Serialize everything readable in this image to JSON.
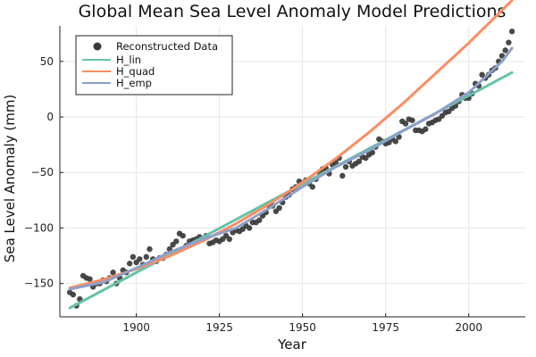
{
  "chart_data": {
    "type": "scatter",
    "title": "Global Mean Sea Level Anomaly Model Predictions",
    "xlabel": "Year",
    "ylabel": "Sea Level Anomaly (mm)",
    "xlim": [
      1877,
      2017
    ],
    "ylim": [
      -180,
      82
    ],
    "xticks": [
      1900,
      1925,
      1950,
      1975,
      2000
    ],
    "yticks": [
      -150,
      -100,
      -50,
      0,
      50
    ],
    "grid": true,
    "legend_position": "top-left",
    "series": [
      {
        "name": "Reconstructed Data",
        "kind": "scatter",
        "color": "#3a3a3a",
        "x": [
          1880,
          1881,
          1882,
          1883,
          1884,
          1885,
          1886,
          1887,
          1888,
          1889,
          1890,
          1891,
          1892,
          1893,
          1894,
          1895,
          1896,
          1897,
          1898,
          1899,
          1900,
          1901,
          1902,
          1903,
          1904,
          1905,
          1906,
          1907,
          1908,
          1909,
          1910,
          1911,
          1912,
          1913,
          1914,
          1915,
          1916,
          1917,
          1918,
          1919,
          1920,
          1921,
          1922,
          1923,
          1924,
          1925,
          1926,
          1927,
          1928,
          1929,
          1930,
          1931,
          1932,
          1933,
          1934,
          1935,
          1936,
          1937,
          1938,
          1939,
          1940,
          1941,
          1942,
          1943,
          1944,
          1945,
          1946,
          1947,
          1948,
          1949,
          1950,
          1951,
          1952,
          1953,
          1954,
          1955,
          1956,
          1957,
          1958,
          1959,
          1960,
          1961,
          1962,
          1963,
          1964,
          1965,
          1966,
          1967,
          1968,
          1969,
          1970,
          1971,
          1972,
          1973,
          1974,
          1975,
          1976,
          1977,
          1978,
          1979,
          1980,
          1981,
          1982,
          1983,
          1984,
          1985,
          1986,
          1987,
          1988,
          1989,
          1990,
          1991,
          1992,
          1993,
          1994,
          1995,
          1996,
          1997,
          1998,
          1999,
          2000,
          2001,
          2002,
          2003,
          2004,
          2005,
          2006,
          2007,
          2008,
          2009,
          2010,
          2011,
          2012,
          2013
        ],
        "y": [
          -158,
          -160,
          -170,
          -164,
          -143,
          -145,
          -146,
          -153,
          -150,
          -150,
          -147,
          -148,
          -145,
          -140,
          -150,
          -145,
          -138,
          -140,
          -132,
          -126,
          -131,
          -128,
          -133,
          -126,
          -119,
          -128,
          -130,
          -127,
          -127,
          -124,
          -119,
          -115,
          -112,
          -105,
          -107,
          -116,
          -112,
          -111,
          -110,
          -108,
          -110,
          -107,
          -114,
          -113,
          -111,
          -112,
          -110,
          -107,
          -110,
          -104,
          -102,
          -103,
          -101,
          -98,
          -100,
          -95,
          -95,
          -93,
          -89,
          -86,
          -80,
          -80,
          -85,
          -82,
          -77,
          -72,
          -70,
          -65,
          -63,
          -58,
          -60,
          -57,
          -60,
          -63,
          -56,
          -50,
          -47,
          -46,
          -51,
          -43,
          -41,
          -37,
          -53,
          -45,
          -40,
          -44,
          -42,
          -40,
          -36,
          -37,
          -34,
          -32,
          -27,
          -20,
          -22,
          -24,
          -23,
          -20,
          -22,
          -18,
          -4,
          -6,
          -2,
          -3,
          -12,
          -12,
          -13,
          -11,
          -6,
          -5,
          -3,
          -2,
          1,
          4,
          5,
          8,
          10,
          14,
          20,
          17,
          17,
          21,
          30,
          28,
          38,
          35,
          38,
          42,
          44,
          50,
          55,
          60,
          67,
          77
        ]
      },
      {
        "name": "H_lin",
        "kind": "line",
        "color": "#66c2a5",
        "x": [
          1880,
          2013
        ],
        "y": [
          -172,
          40
        ]
      },
      {
        "name": "H_quad",
        "kind": "line",
        "color": "#fc8d62",
        "x": [
          1880,
          1890,
          1900,
          1910,
          1920,
          1930,
          1940,
          1950,
          1960,
          1970,
          1980,
          1990,
          2000,
          2010,
          2013
        ],
        "y": [
          -154,
          -146.5,
          -136.9,
          -125.3,
          -111.7,
          -96.1,
          -78.5,
          -59.0,
          -37.5,
          -13.9,
          11.6,
          39.1,
          66.6,
          96.1,
          105
        ]
      },
      {
        "name": "H_emp",
        "kind": "line",
        "color": "#8da0cb",
        "x": [
          1880,
          1890,
          1900,
          1910,
          1920,
          1930,
          1940,
          1950,
          1960,
          1970,
          1980,
          1990,
          2000,
          2010,
          2013
        ],
        "y": [
          -155,
          -149,
          -136,
          -122,
          -110,
          -100,
          -82,
          -63,
          -45,
          -30,
          -13,
          3,
          22,
          50,
          62
        ]
      }
    ]
  }
}
